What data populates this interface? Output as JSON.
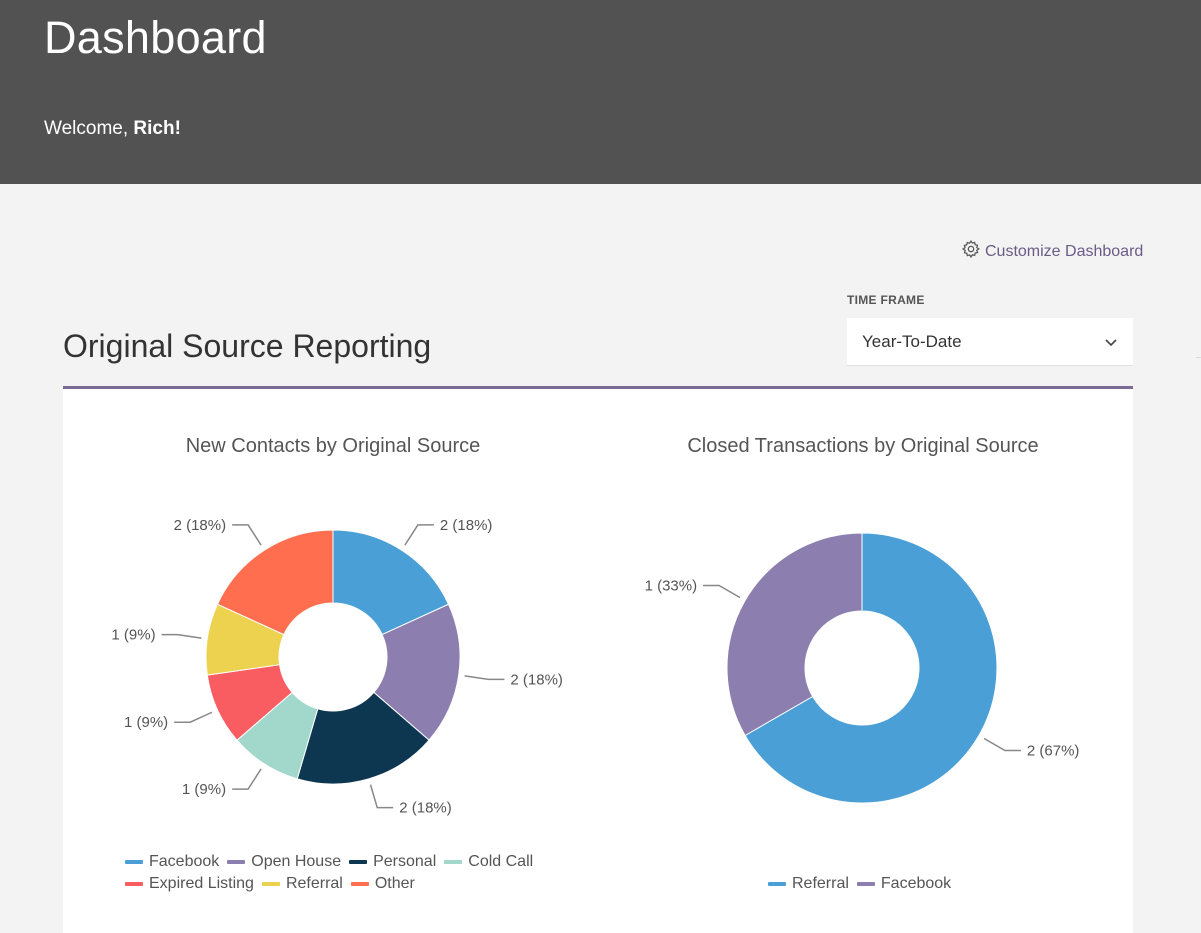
{
  "header": {
    "title": "Dashboard",
    "welcome_prefix": "Welcome, ",
    "welcome_name": "Rich!"
  },
  "toolbar": {
    "customize_label": "Customize Dashboard"
  },
  "time_frame": {
    "label": "TIME FRAME",
    "selected": "Year-To-Date"
  },
  "section": {
    "title": "Original Source Reporting"
  },
  "chart_data": [
    {
      "type": "pie",
      "title": "New Contacts by Original Source",
      "donut": true,
      "categories": [
        "Facebook",
        "Open House",
        "Personal",
        "Cold Call",
        "Expired Listing",
        "Referral",
        "Other"
      ],
      "values": [
        2,
        2,
        2,
        1,
        1,
        1,
        2
      ],
      "labels": [
        "2 (18%)",
        "2 (18%)",
        "2 (18%)",
        "1 (9%)",
        "1 (9%)",
        "1 (9%)",
        "2 (18%)"
      ],
      "colors": [
        "#4a9fd6",
        "#8c7fb0",
        "#0d3651",
        "#a2d8cc",
        "#f95d62",
        "#ecd24f",
        "#ff6f4f"
      ],
      "legend_rows": [
        [
          "Facebook",
          "Open House",
          "Personal",
          "Cold Call"
        ],
        [
          "Expired Listing",
          "Referral",
          "Other"
        ]
      ],
      "legend_position": "bottom"
    },
    {
      "type": "pie",
      "title": "Closed Transactions by Original Source",
      "donut": true,
      "categories": [
        "Referral",
        "Facebook"
      ],
      "values": [
        2,
        1
      ],
      "labels": [
        "2 (67%)",
        "1 (33%)"
      ],
      "colors": [
        "#4a9fd6",
        "#8c7fb0"
      ],
      "legend_rows": [
        [
          "Referral",
          "Facebook"
        ]
      ],
      "legend_position": "bottom"
    }
  ]
}
